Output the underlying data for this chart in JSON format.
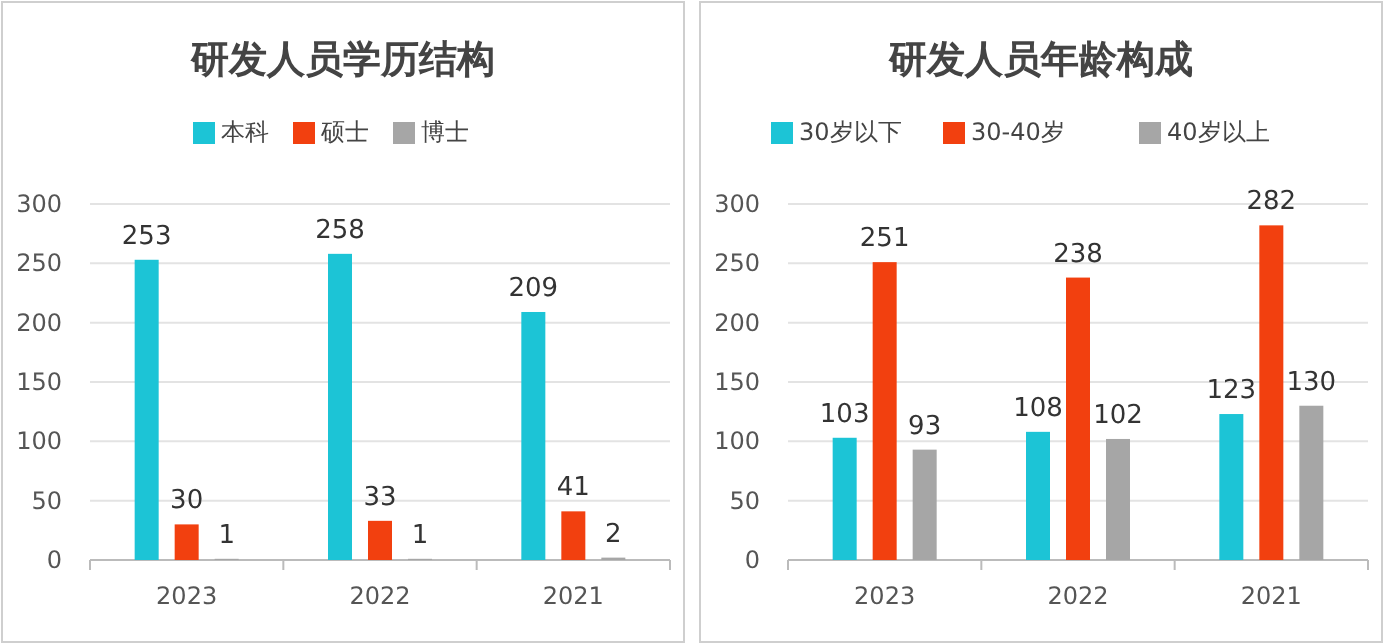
{
  "chart_data": [
    {
      "type": "bar",
      "title": "研发人员学历结构",
      "categories": [
        "2023",
        "2022",
        "2021"
      ],
      "series": [
        {
          "name": "本科",
          "color": "#1cc4d6",
          "values": [
            253,
            258,
            209
          ]
        },
        {
          "name": "硕士",
          "color": "#f2400f",
          "values": [
            30,
            33,
            41
          ]
        },
        {
          "name": "博士",
          "color": "#a6a6a6",
          "values": [
            1,
            1,
            2
          ]
        }
      ],
      "ylim": [
        0,
        300
      ],
      "yticks": [
        0,
        50,
        100,
        150,
        200,
        250,
        300
      ],
      "grid": "y",
      "legend": "top",
      "data_labels": true
    },
    {
      "type": "bar",
      "title": "研发人员年龄构成",
      "categories": [
        "2023",
        "2022",
        "2021"
      ],
      "series": [
        {
          "name": "30岁以下",
          "color": "#1cc4d6",
          "values": [
            103,
            108,
            123
          ]
        },
        {
          "name": "30-40岁",
          "color": "#f2400f",
          "values": [
            251,
            238,
            282
          ]
        },
        {
          "name": "40岁以上",
          "color": "#a6a6a6",
          "values": [
            93,
            102,
            130
          ]
        }
      ],
      "ylim": [
        0,
        300
      ],
      "yticks": [
        0,
        50,
        100,
        150,
        200,
        250,
        300
      ],
      "grid": "y",
      "legend": "top",
      "data_labels": true
    }
  ]
}
